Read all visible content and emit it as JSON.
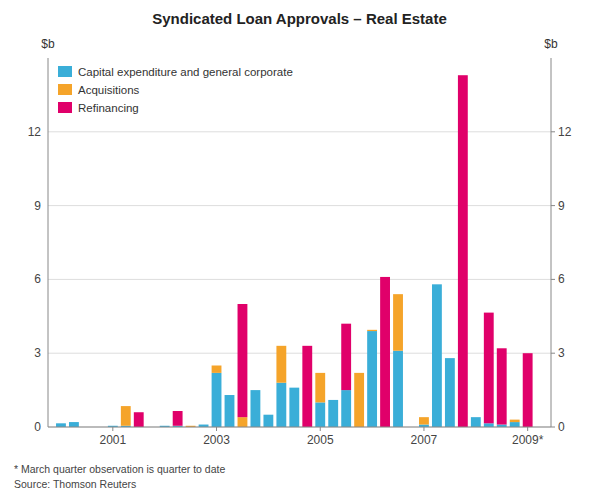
{
  "chart_data": {
    "type": "bar",
    "stacked": true,
    "title": "Syndicated Loan Approvals – Real Estate",
    "ylabel": "$b",
    "y2label": "$b",
    "footnotes": [
      "* March quarter observation is quarter to date",
      "Source: Thomson Reuters"
    ],
    "x": [
      2000.0,
      2000.25,
      2000.5,
      2000.75,
      2001.0,
      2001.25,
      2001.5,
      2001.75,
      2002.0,
      2002.25,
      2002.5,
      2002.75,
      2003.0,
      2003.25,
      2003.5,
      2003.75,
      2004.0,
      2004.25,
      2004.5,
      2004.75,
      2005.0,
      2005.25,
      2005.5,
      2005.75,
      2006.0,
      2006.25,
      2006.5,
      2006.75,
      2007.0,
      2007.25,
      2007.5,
      2007.75,
      2008.0,
      2008.25,
      2008.5,
      2008.75,
      2009.0
    ],
    "series": [
      {
        "name": "Capital expenditure and general corporate",
        "color": "#3AAED8",
        "values": [
          0.15,
          0.2,
          0.0,
          0.0,
          0.05,
          0.05,
          0.0,
          0.0,
          0.05,
          0.05,
          0.0,
          0.1,
          2.2,
          1.3,
          0.0,
          1.5,
          0.5,
          1.8,
          1.6,
          0.0,
          1.0,
          1.1,
          1.5,
          0.0,
          3.9,
          0.0,
          3.1,
          0.0,
          0.1,
          5.8,
          2.8,
          0.0,
          0.4,
          0.15,
          0.1,
          0.2,
          0.0
        ]
      },
      {
        "name": "Acquisitions",
        "color": "#F5A42A",
        "values": [
          0.0,
          0.0,
          0.0,
          0.0,
          0.0,
          0.8,
          0.0,
          0.0,
          0.0,
          0.0,
          0.05,
          0.0,
          0.3,
          0.0,
          0.4,
          0.0,
          0.0,
          1.5,
          0.0,
          0.0,
          1.2,
          0.0,
          0.0,
          2.2,
          0.05,
          0.0,
          2.3,
          0.0,
          0.3,
          0.0,
          0.0,
          0.0,
          0.0,
          0.0,
          0.0,
          0.1,
          0.0
        ]
      },
      {
        "name": "Refinancing",
        "color": "#E0006A",
        "values": [
          0.0,
          0.0,
          0.0,
          0.0,
          0.0,
          0.0,
          0.6,
          0.0,
          0.0,
          0.6,
          0.0,
          0.0,
          0.0,
          0.0,
          4.6,
          0.0,
          0.0,
          0.0,
          0.0,
          3.3,
          0.0,
          0.0,
          2.7,
          0.0,
          0.0,
          6.1,
          0.0,
          0.0,
          0.0,
          0.0,
          0.0,
          14.3,
          0.0,
          4.5,
          3.1,
          0.0,
          3.0
        ]
      }
    ],
    "xlim": [
      1999.75,
      2009.45
    ],
    "xticks": [
      2001,
      2003,
      2005,
      2007,
      {
        "value": 2009,
        "label": "2009*"
      }
    ],
    "ylim": [
      0,
      15
    ],
    "yticks": [
      0,
      3,
      6,
      9,
      12
    ],
    "y2lim": [
      0,
      15
    ],
    "y2ticks": [
      0,
      3,
      6,
      9,
      12
    ],
    "grid": true,
    "legend": "upper left"
  }
}
